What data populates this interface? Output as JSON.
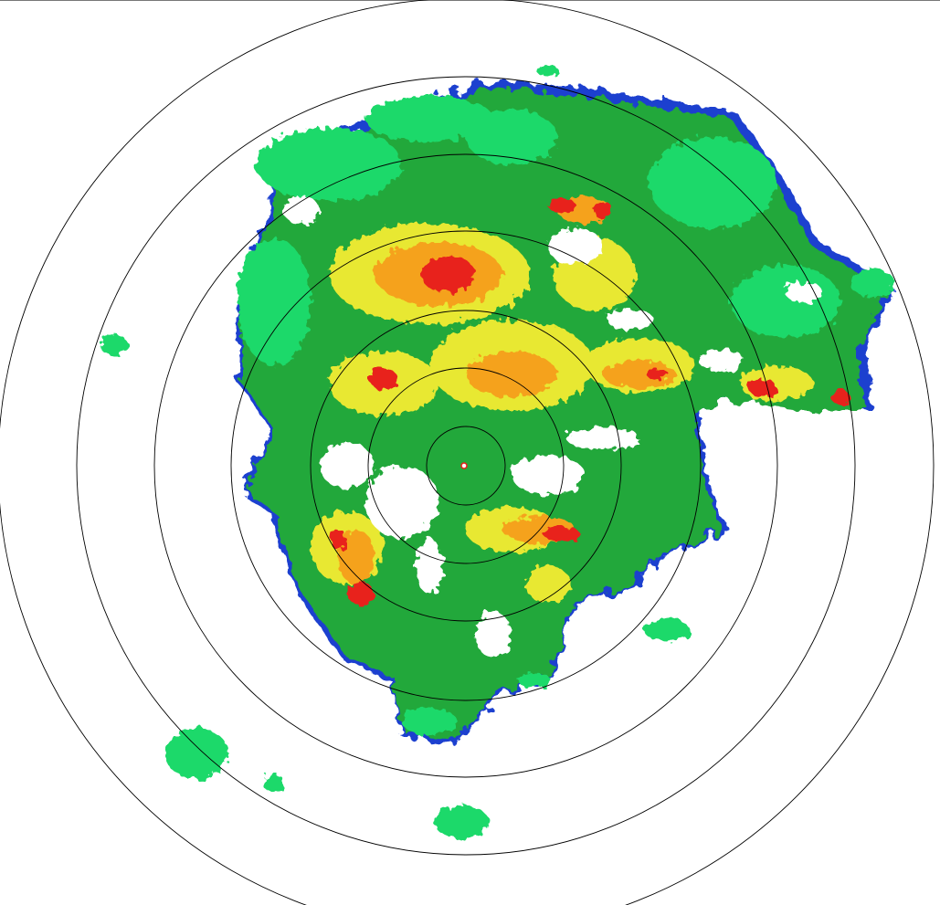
{
  "display": {
    "type": "radar-ppi-reflectivity",
    "range_rings": 7,
    "ring_color": "#000000",
    "background": "#ffffff"
  },
  "color_scale": [
    "#1f3fcf",
    "#1fd96a",
    "#21a83a",
    "#e8e830",
    "#f5a21a",
    "#e8201a",
    "#ffffff"
  ]
}
